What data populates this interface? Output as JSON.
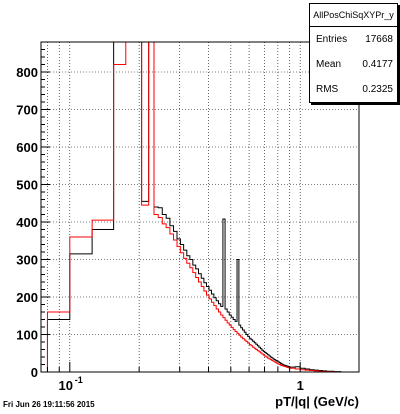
{
  "stats": {
    "title": "AllPosChiSqXYPr_y",
    "rows": [
      {
        "label": "Entries",
        "value": "17668"
      },
      {
        "label": "Mean",
        "value": "0.4177"
      },
      {
        "label": "RMS",
        "value": "0.2325"
      }
    ]
  },
  "footer": {
    "date": "Fri Jun 26 19:11:56 2015"
  },
  "chart_data": {
    "type": "step",
    "xlabel": "pT/|q| (GeV/c)",
    "ylabel": "",
    "xscale": "log",
    "xlim": [
      0.075,
      1.8
    ],
    "ylim": [
      0,
      880
    ],
    "yticks": [
      0,
      100,
      200,
      300,
      400,
      500,
      600,
      700,
      800
    ],
    "xtick_labels": [
      {
        "value": 0.1,
        "label": "10",
        "exp": "-1"
      },
      {
        "value": 1,
        "label": "1"
      }
    ],
    "grid": true,
    "series": [
      {
        "name": "",
        "color": "#000000",
        "edges": [
          0.08,
          0.1,
          0.125,
          0.155,
          0.175,
          0.19,
          0.205,
          0.22,
          0.232,
          0.242,
          0.252,
          0.262,
          0.272,
          0.282,
          0.292,
          0.302,
          0.312,
          0.322,
          0.332,
          0.342,
          0.352,
          0.362,
          0.372,
          0.382,
          0.392,
          0.402,
          0.412,
          0.422,
          0.432,
          0.442,
          0.452,
          0.462,
          0.472,
          0.482,
          0.492,
          0.502,
          0.512,
          0.522,
          0.532,
          0.542,
          0.552,
          0.562,
          0.572,
          0.582,
          0.592,
          0.602,
          0.612,
          0.622,
          0.632,
          0.642,
          0.652,
          0.662,
          0.672,
          0.682,
          0.692,
          0.702,
          0.712,
          0.722,
          0.732,
          0.742,
          0.752,
          0.762,
          0.772,
          0.782,
          0.792,
          0.802,
          0.812,
          0.822,
          0.832,
          0.842,
          0.852,
          0.862,
          0.872,
          0.882,
          0.892,
          0.902,
          0.952,
          1.0,
          1.05,
          1.1,
          1.15,
          1.2,
          1.25,
          1.3,
          1.4,
          1.5,
          1.6
        ],
        "values": [
          140,
          315,
          380,
          880,
          880,
          880,
          455,
          880,
          440,
          438,
          420,
          410,
          390,
          375,
          355,
          340,
          325,
          310,
          300,
          285,
          275,
          262,
          250,
          238,
          228,
          218,
          208,
          198,
          190,
          182,
          175,
          408,
          168,
          160,
          152,
          146,
          140,
          135,
          300,
          125,
          118,
          112,
          106,
          100,
          95,
          90,
          86,
          82,
          78,
          74,
          70,
          66,
          62,
          58,
          55,
          52,
          49,
          46,
          43,
          40,
          38,
          35,
          33,
          31,
          29,
          27,
          25,
          23,
          21,
          19,
          18,
          17,
          16,
          15,
          14,
          13,
          14,
          10,
          8,
          6,
          5,
          4,
          3,
          2,
          1,
          0
        ]
      },
      {
        "name": "",
        "color": "#ff0000",
        "edges": [
          0.08,
          0.1,
          0.125,
          0.155,
          0.175,
          0.19,
          0.205,
          0.22,
          0.232,
          0.242,
          0.252,
          0.262,
          0.272,
          0.282,
          0.292,
          0.302,
          0.312,
          0.322,
          0.332,
          0.342,
          0.352,
          0.362,
          0.372,
          0.382,
          0.392,
          0.402,
          0.412,
          0.422,
          0.432,
          0.442,
          0.452,
          0.462,
          0.472,
          0.482,
          0.492,
          0.502,
          0.512,
          0.522,
          0.532,
          0.542,
          0.552,
          0.562,
          0.572,
          0.582,
          0.592,
          0.602,
          0.612,
          0.622,
          0.632,
          0.642,
          0.652,
          0.662,
          0.672,
          0.682,
          0.692,
          0.702,
          0.712,
          0.722,
          0.732,
          0.742,
          0.752,
          0.762,
          0.772,
          0.782,
          0.792,
          0.802,
          0.812,
          0.822,
          0.832,
          0.842,
          0.852,
          0.862,
          0.872,
          0.882,
          0.892,
          0.902,
          0.952,
          1.0,
          1.05,
          1.1,
          1.15,
          1.2,
          1.25,
          1.3,
          1.4,
          1.5,
          1.6
        ],
        "values": [
          160,
          360,
          405,
          820,
          880,
          880,
          445,
          880,
          420,
          412,
          395,
          385,
          368,
          352,
          335,
          318,
          303,
          290,
          278,
          265,
          252,
          240,
          228,
          216,
          205,
          195,
          186,
          177,
          168,
          160,
          152,
          145,
          138,
          131,
          125,
          119,
          113,
          108,
          103,
          98,
          93,
          89,
          85,
          81,
          77,
          73,
          70,
          66,
          63,
          60,
          57,
          54,
          51,
          48,
          45,
          42,
          40,
          37,
          35,
          33,
          31,
          29,
          27,
          25,
          23,
          21,
          20,
          18,
          17,
          16,
          15,
          14,
          13,
          12,
          11,
          10,
          8,
          6,
          5,
          4,
          3,
          2,
          1,
          1,
          0,
          0
        ]
      }
    ]
  }
}
